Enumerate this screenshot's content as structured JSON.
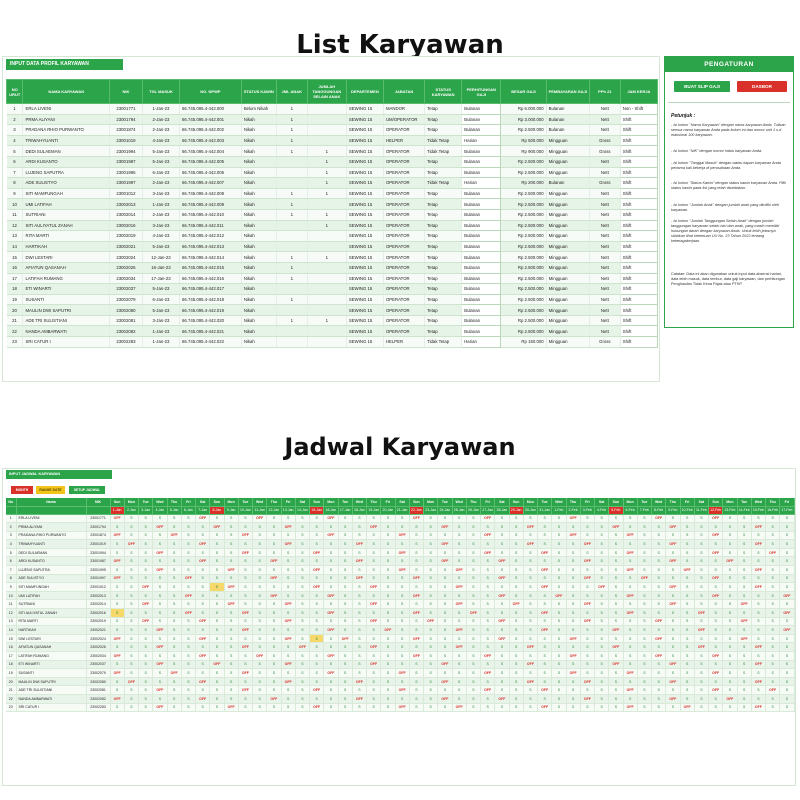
{
  "titles": {
    "list": "List Karyawan",
    "jadwal": "Jadwal Karyawan"
  },
  "top_sheet": {
    "input_title": "INPUT DATA PROFIL KARYAWAN",
    "columns": [
      "NO URUT",
      "NAMA KARYAWAN",
      "NIK",
      "TGL MASUK",
      "NO. NPWP",
      "STATUS KAWIN",
      "JML ANAK",
      "JUMLAH TANGGUNGAN SELAIN ANAK",
      "DEPARTEMEN",
      "JABATAN",
      "STATUS KARYAWAN",
      "PERHITUNGAN GAJI",
      "BESAR GAJI",
      "PEMBAYARAN GAJI",
      "PPh 21",
      "JAM KERJA"
    ],
    "rows": [
      [
        "1",
        "ERLA LIVENI",
        "23001771",
        "1-Jan-23",
        "66.745.095.4-442.000",
        "Belum Nikah",
        "1",
        "",
        "SEWING 15",
        "MANDOR",
        "Tetap",
        "Bulanan",
        "6.000.000",
        "Bulanan",
        "Nett",
        "Non - Shift"
      ],
      [
        "2",
        "PRMA ALIYANI",
        "23001794",
        "2-Jan-23",
        "66.745.095.4-442.001",
        "Nikah",
        "1",
        "",
        "SEWING 15",
        "UM/OPERATOR",
        "Tetap",
        "Bulanan",
        "3.000.000",
        "Bulanan",
        "Nett",
        "Shift"
      ],
      [
        "3",
        "PRADANA RHIO PURWANTO",
        "23001874",
        "2-Jan-23",
        "66.745.095.4-442.002",
        "Nikah",
        "1",
        "",
        "SEWING 15",
        "OPERATOR",
        "Tetap",
        "Bulanan",
        "2.500.000",
        "Bulanan",
        "Nett",
        "Shift"
      ],
      [
        "4",
        "TRIWAHYUANTI",
        "23001019",
        "4-Jan-23",
        "66.745.095.4-442.003",
        "Nikah",
        "1",
        "",
        "SEWING 15",
        "HELPER",
        "Tidak Tetap",
        "Harian",
        "500.000",
        "Mingguan",
        "Gross",
        "Shift"
      ],
      [
        "5",
        "DEDI SULAEMAN",
        "23001994",
        "5-Jan-23",
        "66.745.095.4-442.004",
        "Nikah",
        "1",
        "1",
        "SEWING 15",
        "OPERATOR",
        "Tidak Tetap",
        "Bulanan",
        "900.000",
        "Mingguan",
        "Gross",
        "Shift"
      ],
      [
        "6",
        "ARDI KUSANTO",
        "23001987",
        "5-Jan-23",
        "66.745.095.4-442.005",
        "Nikah",
        "",
        "1",
        "SEWING 15",
        "OPERATOR",
        "Tetap",
        "Bulanan",
        "2.500.000",
        "Mingguan",
        "Nett",
        "Shift"
      ],
      [
        "7",
        "LUJENG SAPUTRA",
        "23001995",
        "6-Jan-23",
        "66.745.095.4-442.006",
        "Nikah",
        "",
        "1",
        "SEWING 15",
        "OPERATOR",
        "Tetap",
        "Bulanan",
        "2.500.000",
        "Mingguan",
        "Nett",
        "Shift"
      ],
      [
        "8",
        "ADE SULISTYO",
        "23001997",
        "2-Jan-23",
        "66.745.095.4-442.007",
        "Nikah",
        "",
        "1",
        "SEWING 15",
        "OPERATOR",
        "Tidak Tetap",
        "Harian",
        "200.000",
        "Bulanan",
        "Gross",
        "Shift"
      ],
      [
        "9",
        "SITI MAMFUNGAH",
        "23001012",
        "3-Jan-23",
        "66.745.095.4-442.008",
        "Nikah",
        "1",
        "1",
        "SEWING 15",
        "OPERATOR",
        "Tetap",
        "Bulanan",
        "2.500.000",
        "Mingguan",
        "Nett",
        "Shift"
      ],
      [
        "10",
        "UMI LATIFAH",
        "23002013",
        "1-Jan-23",
        "66.745.095.4-442.009",
        "Nikah",
        "1",
        "",
        "SEWING 15",
        "OPERATOR",
        "Tetap",
        "Bulanan",
        "2.500.000",
        "Mingguan",
        "Nett",
        "Shift"
      ],
      [
        "11",
        "SUTRIANI",
        "23002014",
        "2-Jan-23",
        "66.745.095.4-442.010",
        "Nikah",
        "1",
        "1",
        "SEWING 15",
        "OPERATOR",
        "Tetap",
        "Bulanan",
        "2.500.000",
        "Mingguan",
        "Nett",
        "Shift"
      ],
      [
        "12",
        "SITI AULIYATUL ZANAH",
        "23002016",
        "3-Jan-23",
        "66.745.095.4-442.011",
        "Nikah",
        "",
        "1",
        "SEWING 15",
        "OPERATOR",
        "Tetap",
        "Bulanan",
        "2.500.000",
        "Mingguan",
        "Nett",
        "Shift"
      ],
      [
        "13",
        "RITA MARTI",
        "23002019",
        "4-Jan-23",
        "66.745.095.4-442.012",
        "Nikah",
        "",
        "",
        "SEWING 15",
        "OPERATOR",
        "Tetap",
        "Bulanan",
        "2.500.000",
        "Mingguan",
        "Nett",
        "Shift"
      ],
      [
        "14",
        "HARTIKAH",
        "23002021",
        "5-Jan-23",
        "66.745.095.4-442.013",
        "Nikah",
        "",
        "",
        "SEWING 15",
        "OPERATOR",
        "Tetap",
        "Bulanan",
        "2.500.000",
        "Mingguan",
        "Nett",
        "Shift"
      ],
      [
        "15",
        "DWI LESTARI",
        "23002024",
        "12-Jan-23",
        "66.745.095.4-442.014",
        "Nikah",
        "1",
        "1",
        "SEWING 15",
        "OPERATOR",
        "Tetap",
        "Bulanan",
        "2.500.000",
        "Mingguan",
        "Nett",
        "Shift"
      ],
      [
        "16",
        "AFIATUN QASANAH",
        "23002026",
        "16-Jan-23",
        "66.745.095.4-442.015",
        "Nikah",
        "1",
        "",
        "SEWING 15",
        "OPERATOR",
        "Tetap",
        "Bulanan",
        "2.500.000",
        "Mingguan",
        "Nett",
        "Shift"
      ],
      [
        "17",
        "LATIFAH RUMANG",
        "23002034",
        "17-Jan-23",
        "66.745.095.4-442.016",
        "Nikah",
        "1",
        "",
        "SEWING 15",
        "OPERATOR",
        "Tetap",
        "Bulanan",
        "2.500.000",
        "Mingguan",
        "Nett",
        "Shift"
      ],
      [
        "18",
        "ETI WINARTI",
        "23002037",
        "5-Jan-23",
        "66.745.095.4-442.017",
        "Nikah",
        "",
        "",
        "SEWING 15",
        "OPERATOR",
        "Tetap",
        "Bulanan",
        "2.500.000",
        "Mingguan",
        "Nett",
        "Shift"
      ],
      [
        "19",
        "SUSANTI",
        "23002079",
        "6-Jan-23",
        "66.745.095.4-442.018",
        "Nikah",
        "1",
        "",
        "SEWING 15",
        "OPERATOR",
        "Tetap",
        "Bulanan",
        "2.500.000",
        "Mingguan",
        "Nett",
        "Shift"
      ],
      [
        "20",
        "MAULIN DWI SAPUTRI",
        "23002080",
        "5-Jan-23",
        "66.745.095.4-442.019",
        "Nikah",
        "",
        "",
        "SEWING 15",
        "OPERATOR",
        "Tetap",
        "Bulanan",
        "2.500.000",
        "Mingguan",
        "Nett",
        "Shift"
      ],
      [
        "21",
        "ADE TRI SULISTIANI",
        "23002081",
        "3-Jan-23",
        "66.745.095.4-442.020",
        "Nikah",
        "1",
        "1",
        "SEWING 15",
        "OPERATOR",
        "Tetap",
        "Bulanan",
        "2.500.000",
        "Mingguan",
        "Nett",
        "Shift"
      ],
      [
        "22",
        "NANDA AMBARWATI",
        "23002082",
        "1-Jan-23",
        "66.745.095.4-442.021",
        "Nikah",
        "",
        "",
        "SEWING 15",
        "OPERATOR",
        "Tetap",
        "Bulanan",
        "2.500.000",
        "Mingguan",
        "Nett",
        "Shift"
      ],
      [
        "23",
        "SRI CATUR I",
        "23002283",
        "1-Jan-23",
        "66.745.095.4-442.022",
        "Nikah",
        "",
        "",
        "SEWING 15",
        "HELPER",
        "Tidak Tetap",
        "Harian",
        "150.000",
        "Mingguan",
        "Gross",
        "Shift"
      ]
    ],
    "currency": "Rp"
  },
  "settings_panel": {
    "title": "PENGATURAN",
    "buttons": {
      "slip": "BUAT SLIP GAJI",
      "daskor": "DASBOR"
    },
    "petunjuk": "Petunjuk :",
    "notes": [
      "- Isi kolom \"Nama Karyawan\" dengan nama karyawan Anda. Tulisan semua nama karyawan Anda pada kolom ini dan nomor unit 1 s.d maksimal 100 karyawan.",
      "- Isi kolom \"NIK\" dengan nomor induk karyawan Anda.",
      "- Isi kolom \"Tanggal Masuk\" dengan waktu kapan karyawan Anda pertama kali bekerja di perusahaan Anda.",
      "- Isi kolom \"Status Kawin\" dengan status kawin karyawan Anda. Pilih status kawin pada list yang telah disediakan.",
      "- Isi kolom \"Jumlah Anak\" dengan jumlah anak yang dimiliki oleh karyawan.",
      "- Isi kolom \"Jumlah Tanggungan Selain Anak\" dengan jumlah tanggungan karyawan selain istri dan anak, yang masih memiliki hubungan darah dengan karyawan Anda. Untuk lebih jelasnya silahkan lihat ketentuan UU No. 23 Tahun 2022 tentang ketenagakerjaan.",
      "Catatan: Data ini akan digunakan untuk input data absensi harian, data lebih masuk, data lembur, data gaji karyawan, dan perhitungan Penghasilan Tidak Kena Pajak atau PTKP."
    ]
  },
  "bottom_sheet": {
    "input_title": "INPUT JADWAL KARYAWAN",
    "filter_buttons": [
      "MONTH",
      "RANGE DATE",
      "SETUP JADWAL"
    ],
    "head_no": "No",
    "head_name": "Nama",
    "head_nik": "NIK",
    "days": [
      "Sun",
      "Mon",
      "Tue",
      "Wed",
      "Thu",
      "Fri",
      "Sat",
      "Sun",
      "Mon",
      "Tue",
      "Wed",
      "Thu",
      "Fri",
      "Sat",
      "Sun",
      "Mon",
      "Tue",
      "Wed",
      "Thu",
      "Fri",
      "Sat",
      "Sun",
      "Mon",
      "Tue",
      "Wed",
      "Thu",
      "Fri",
      "Sat",
      "Sun",
      "Mon",
      "Tue",
      "Wed",
      "Thu",
      "Fri",
      "Sat",
      "Sun",
      "Mon",
      "Tue",
      "Wed",
      "Thu",
      "Fri",
      "Sat",
      "Sun",
      "Mon",
      "Tue",
      "Wed",
      "Thu",
      "Fri"
    ],
    "dates": [
      "1-Jan",
      "2-Jan",
      "3-Jan",
      "4-Jan",
      "5-Jan",
      "6-Jan",
      "7-Jan",
      "8-Jan",
      "9-Jan",
      "10-Jan",
      "11-Jan",
      "12-Jan",
      "13-Jan",
      "14-Jan",
      "15-Jan",
      "16-Jan",
      "17-Jan",
      "18-Jan",
      "19-Jan",
      "20-Jan",
      "21-Jan",
      "22-Jan",
      "23-Jan",
      "24-Jan",
      "25-Jan",
      "26-Jan",
      "27-Jan",
      "28-Jan",
      "29-Jan",
      "30-Jan",
      "31-Jan",
      "1-Feb",
      "2-Feb",
      "3-Feb",
      "4-Feb",
      "5-Feb",
      "6-Feb",
      "7-Feb",
      "8-Feb",
      "9-Feb",
      "10-Feb",
      "11-Feb",
      "12-Feb",
      "13-Feb",
      "14-Feb",
      "15-Feb",
      "16-Feb",
      "17-Feb"
    ],
    "red_date_indexes": [
      0,
      7,
      14,
      21,
      28,
      35,
      42
    ],
    "rows": [
      {
        "no": "1",
        "name": "ERLA LIVENI",
        "nik": "23001771"
      },
      {
        "no": "2",
        "name": "PRMA ALIYANI",
        "nik": "23001794"
      },
      {
        "no": "3",
        "name": "PRADANA RHIO PURWANTO",
        "nik": "23001874"
      },
      {
        "no": "4",
        "name": "TRIWAHYUANTI",
        "nik": "23001019"
      },
      {
        "no": "5",
        "name": "DEDI SULAEMAN",
        "nik": "23001994"
      },
      {
        "no": "6",
        "name": "ARDI KUSANTO",
        "nik": "23001987"
      },
      {
        "no": "7",
        "name": "LUJENG SAPUTRA",
        "nik": "23001995"
      },
      {
        "no": "8",
        "name": "ADE SULISTYO",
        "nik": "23001997"
      },
      {
        "no": "9",
        "name": "SITI MAMFUNGAH",
        "nik": "23001012"
      },
      {
        "no": "10",
        "name": "UMI LATIFAH",
        "nik": "23002013"
      },
      {
        "no": "11",
        "name": "SUTRIANI",
        "nik": "23002014"
      },
      {
        "no": "12",
        "name": "SITI AULIYATUL ZANAH",
        "nik": "23002016"
      },
      {
        "no": "13",
        "name": "RITA MARTI",
        "nik": "23002019"
      },
      {
        "no": "14",
        "name": "HARTIKAH",
        "nik": "23002021"
      },
      {
        "no": "15",
        "name": "DWI LESTARI",
        "nik": "23002024"
      },
      {
        "no": "16",
        "name": "AFIATUN QASANAH",
        "nik": "23002026"
      },
      {
        "no": "17",
        "name": "LATIFAH RUMANG",
        "nik": "23002034"
      },
      {
        "no": "18",
        "name": "ETI WINARTI",
        "nik": "23002037"
      },
      {
        "no": "19",
        "name": "SUSANTI",
        "nik": "23002079"
      },
      {
        "no": "20",
        "name": "MAULIN DWI SAPUTRI",
        "nik": "23002080"
      },
      {
        "no": "21",
        "name": "ADE TRI SULISTIANI",
        "nik": "23002081"
      },
      {
        "no": "22",
        "name": "NANDA AMBARWATI",
        "nik": "23002082"
      },
      {
        "no": "23",
        "name": "SRI CATUR I",
        "nik": "23002283"
      }
    ],
    "schedule_codes": [
      "OFF",
      "S",
      "S",
      "S",
      "S",
      "S",
      "OFF",
      "S",
      "S",
      "S",
      "OFF",
      "S",
      "S",
      "S",
      "S",
      "OFF",
      "S",
      "S",
      "S",
      "S",
      "S",
      "OFF",
      "S",
      "S",
      "S",
      "S",
      "OFF",
      "S",
      "S",
      "S",
      "S",
      "S",
      "OFF",
      "S",
      "S",
      "S",
      "S",
      "S",
      "OFF",
      "S",
      "S",
      "S",
      "OFF",
      "S",
      "S",
      "S",
      "S",
      "S"
    ],
    "colors": {
      "green": "#2ca44a",
      "red": "#d9302a",
      "yellow": "#f3c51b"
    }
  }
}
